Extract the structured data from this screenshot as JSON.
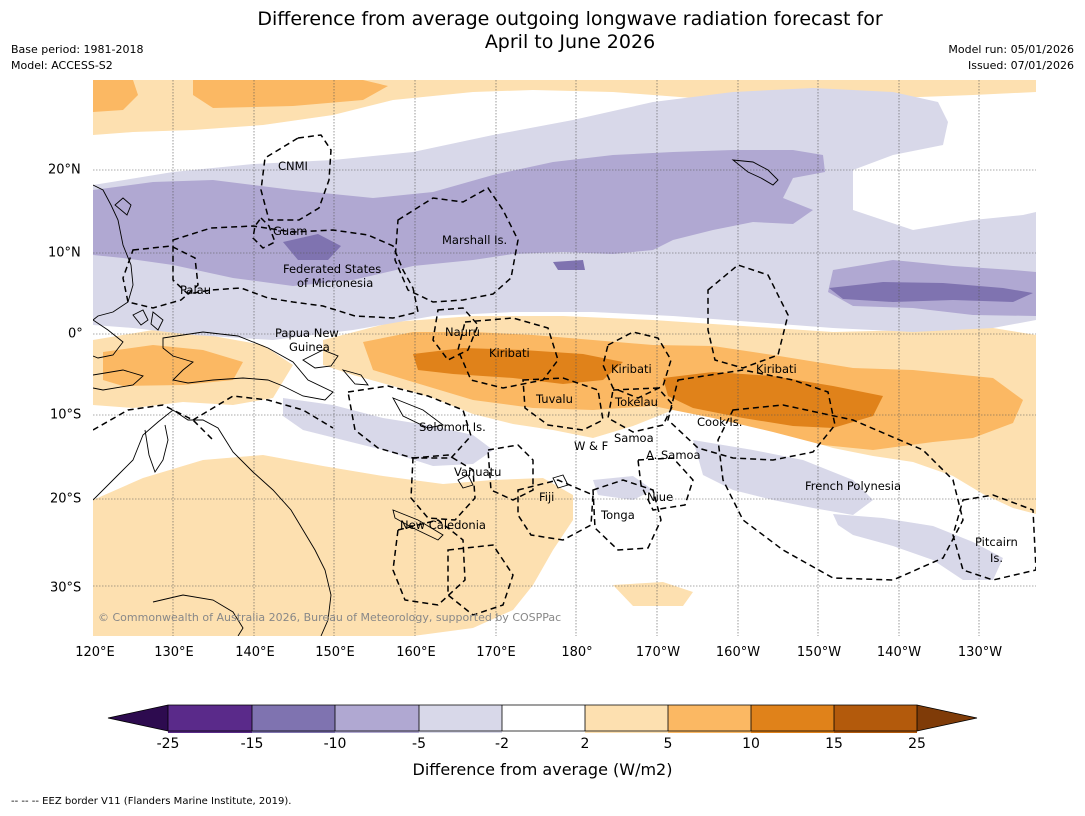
{
  "header": {
    "title_line1": "Difference from average outgoing longwave radiation forecast for",
    "title_line2": "April to June 2026",
    "base_period": "Base period: 1981-2018",
    "model": "Model: ACCESS-S2",
    "model_run": "Model run: 05/01/2026",
    "issued": "Issued: 07/01/2026"
  },
  "map": {
    "lon_labels": [
      "120°E",
      "130°E",
      "140°E",
      "150°E",
      "160°E",
      "170°E",
      "180°",
      "170°W",
      "160°W",
      "150°W",
      "140°W",
      "130°W"
    ],
    "lat_labels": [
      "20°N",
      "10°N",
      "0°",
      "10°S",
      "20°S",
      "30°S"
    ],
    "regions": {
      "cnmi": "CNMI",
      "guam": "Guam",
      "marshall": "Marshall Is.",
      "fsm_1": "Federated States",
      "fsm_2": "of Micronesia",
      "palau": "Palau",
      "png_1": "Papua New",
      "png_2": "Guinea",
      "nauru": "Nauru",
      "kiribati_w": "Kiribati",
      "kiribati_c": "Kiribati",
      "kiribati_e": "Kiribati",
      "tuvalu": "Tuvalu",
      "tokelau": "Tokelau",
      "cook": "Cook Is.",
      "solomon": "Solomon Is.",
      "wf": "W & F",
      "samoa": "Samoa",
      "asamoa": "A. Samoa",
      "vanuatu": "Vanuatu",
      "fiji": "Fiji",
      "niue": "Niue",
      "tonga": "Tonga",
      "fp": "French Polynesia",
      "newcal": "New Caledonia",
      "pitcairn_1": "Pitcairn",
      "pitcairn_2": "Is."
    },
    "credit": "© Commonwealth of Australia 2026, Bureau of Meteorology, supported by COSPPac"
  },
  "colorbar": {
    "title": "Difference from average (W/m2)",
    "ticks": [
      "-25",
      "-15",
      "-10",
      "-5",
      "-2",
      "2",
      "5",
      "10",
      "15",
      "25"
    ],
    "colors": {
      "lt_m25": "#2d0b4f",
      "m25_m15": "#5a2a8a",
      "m15_m10": "#7f73b0",
      "m10_m5": "#b0a8d2",
      "m5_m2": "#d8d8e9",
      "m2_2": "#ffffff",
      "p2_5": "#fde0b0",
      "p5_10": "#fbb863",
      "p10_15": "#e0821a",
      "p15_25": "#b35a0c",
      "gt_25": "#7f3b08"
    }
  },
  "footnote": "--  --  -- EEZ border V11 (Flanders Marine Institute, 2019)."
}
